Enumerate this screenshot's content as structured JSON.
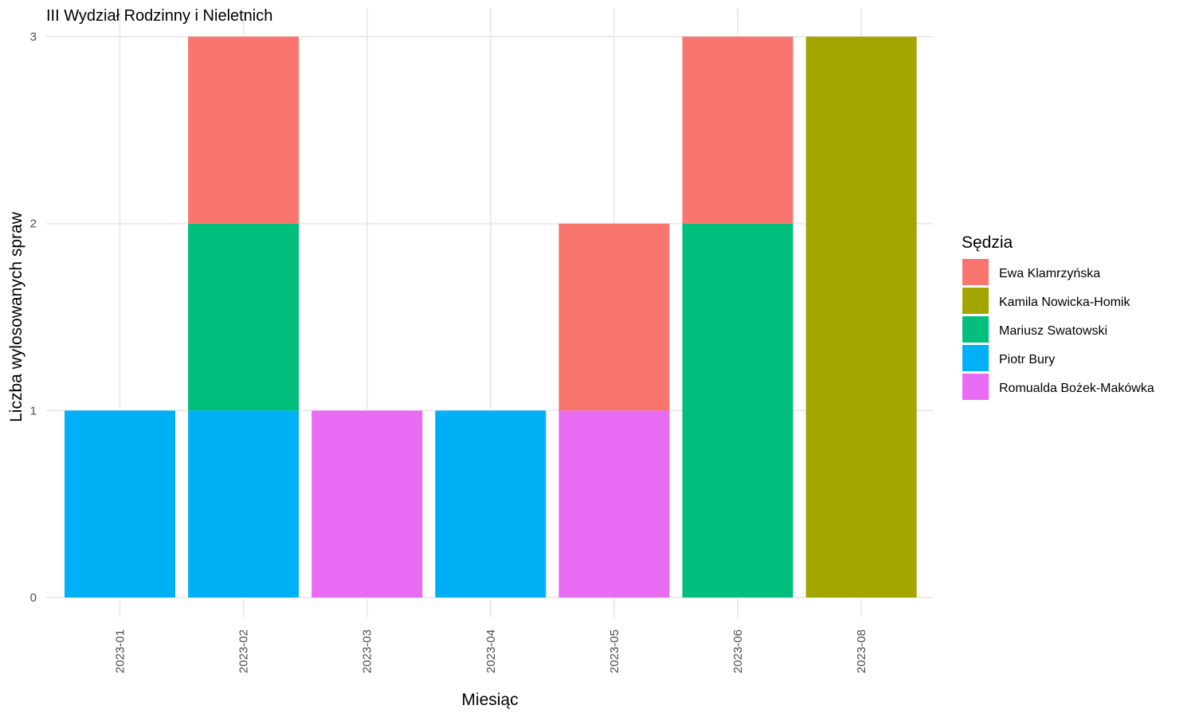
{
  "chart_data": {
    "type": "bar",
    "stacked": true,
    "title": "III Wydział Rodzinny i Nieletnich",
    "xlabel": "Miesiąc",
    "ylabel": "Liczba wylosowanych spraw",
    "categories": [
      "2023-01",
      "2023-02",
      "2023-03",
      "2023-04",
      "2023-05",
      "2023-06",
      "2023-08"
    ],
    "ylim": [
      0,
      3
    ],
    "yticks": [
      0,
      1,
      2,
      3
    ],
    "grid": true,
    "legend": {
      "title": "Sędzia",
      "position": "right"
    },
    "series": [
      {
        "name": "Ewa Klamrzyńska",
        "color": "#F8766D",
        "values": [
          0,
          1,
          0,
          0,
          1,
          1,
          0
        ]
      },
      {
        "name": "Kamila Nowicka-Homik",
        "color": "#A3A500",
        "values": [
          0,
          0,
          0,
          0,
          0,
          0,
          3
        ]
      },
      {
        "name": "Mariusz Swatowski",
        "color": "#00BF7D",
        "values": [
          0,
          1,
          0,
          0,
          0,
          2,
          0
        ]
      },
      {
        "name": "Piotr Bury",
        "color": "#00B0F6",
        "values": [
          1,
          1,
          0,
          1,
          0,
          0,
          0
        ]
      },
      {
        "name": "Romualda Bożek-Makówka",
        "color": "#E76BF3",
        "values": [
          0,
          0,
          1,
          0,
          1,
          0,
          0
        ]
      }
    ]
  }
}
